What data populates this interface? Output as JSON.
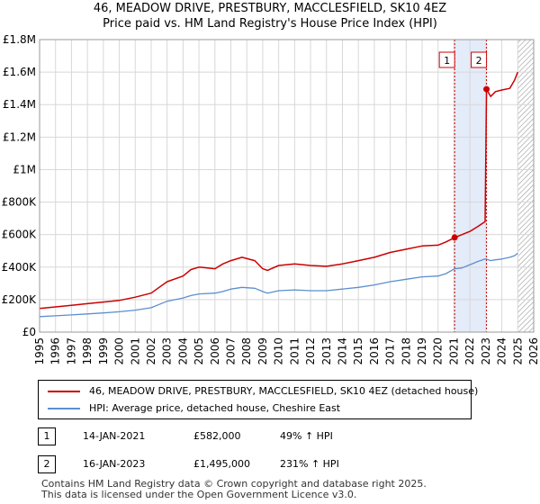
{
  "title_line1": "46, MEADOW DRIVE, PRESTBURY, MACCLESFIELD, SK10 4EZ",
  "title_line2": "Price paid vs. HM Land Registry's House Price Index (HPI)",
  "chart_data": {
    "type": "line",
    "xlim": [
      1995,
      2026
    ],
    "ylim": [
      0,
      1800000
    ],
    "y_ticks": [
      0,
      200000,
      400000,
      600000,
      800000,
      1000000,
      1200000,
      1400000,
      1600000,
      1800000
    ],
    "y_tick_labels": [
      "£0",
      "£200K",
      "£400K",
      "£600K",
      "£800K",
      "£1M",
      "£1.2M",
      "£1.4M",
      "£1.6M",
      "£1.8M"
    ],
    "x_ticks": [
      1995,
      1996,
      1997,
      1998,
      1999,
      2000,
      2001,
      2002,
      2003,
      2004,
      2005,
      2006,
      2007,
      2008,
      2009,
      2010,
      2011,
      2012,
      2013,
      2014,
      2015,
      2016,
      2017,
      2018,
      2019,
      2020,
      2021,
      2022,
      2023,
      2024,
      2025,
      2026
    ],
    "grid": true,
    "highlight_span": [
      2021.04,
      2023.04
    ],
    "forecast_start": 2025.0,
    "series": [
      {
        "name": "46, MEADOW DRIVE, PRESTBURY, MACCLESFIELD, SK10 4EZ (detached house)",
        "color": "#cc0000",
        "x": [
          1995.0,
          1996.0,
          1997.0,
          1998.0,
          1999.0,
          2000.0,
          2001.0,
          2002.0,
          2002.5,
          2003.0,
          2004.0,
          2004.5,
          2005.0,
          2006.0,
          2006.5,
          2007.0,
          2007.7,
          2008.5,
          2009.0,
          2009.3,
          2010.0,
          2011.0,
          2012.0,
          2013.0,
          2014.0,
          2015.0,
          2016.0,
          2017.0,
          2018.0,
          2019.0,
          2020.0,
          2020.5,
          2021.04,
          2021.5,
          2022.0,
          2022.5,
          2022.95,
          2023.04,
          2023.3,
          2023.6,
          2024.0,
          2024.5,
          2024.8,
          2025.0
        ],
        "y": [
          145000,
          155000,
          165000,
          175000,
          185000,
          195000,
          215000,
          240000,
          275000,
          310000,
          345000,
          385000,
          400000,
          390000,
          420000,
          440000,
          460000,
          440000,
          390000,
          380000,
          410000,
          420000,
          410000,
          405000,
          420000,
          440000,
          460000,
          490000,
          510000,
          530000,
          535000,
          555000,
          582000,
          600000,
          620000,
          650000,
          680000,
          1495000,
          1450000,
          1480000,
          1490000,
          1500000,
          1550000,
          1600000
        ]
      },
      {
        "name": "HPI: Average price, detached house, Cheshire East",
        "color": "#5b8fcf",
        "x": [
          1995.0,
          1996.0,
          1997.0,
          1998.0,
          1999.0,
          2000.0,
          2001.0,
          2002.0,
          2002.5,
          2003.0,
          2004.0,
          2004.5,
          2005.0,
          2006.0,
          2006.5,
          2007.0,
          2007.7,
          2008.5,
          2009.0,
          2009.3,
          2010.0,
          2011.0,
          2012.0,
          2013.0,
          2014.0,
          2015.0,
          2016.0,
          2017.0,
          2018.0,
          2019.0,
          2020.0,
          2020.5,
          2021.04,
          2021.5,
          2022.0,
          2022.5,
          2022.95,
          2023.04,
          2023.3,
          2023.6,
          2024.0,
          2024.5,
          2024.8,
          2025.0
        ],
        "y": [
          95000,
          100000,
          106000,
          112000,
          118000,
          125000,
          135000,
          150000,
          170000,
          190000,
          210000,
          225000,
          235000,
          240000,
          250000,
          265000,
          275000,
          270000,
          250000,
          240000,
          255000,
          260000,
          255000,
          255000,
          265000,
          275000,
          290000,
          310000,
          325000,
          340000,
          345000,
          360000,
          390000,
          395000,
          415000,
          435000,
          450000,
          450000,
          440000,
          445000,
          450000,
          460000,
          470000,
          485000
        ]
      }
    ],
    "annotations": [
      {
        "label": "1",
        "x": 2021.04,
        "y": 582000
      },
      {
        "label": "2",
        "x": 2023.04,
        "y": 1495000
      }
    ]
  },
  "legend": {
    "entries": [
      {
        "label": "46, MEADOW DRIVE, PRESTBURY, MACCLESFIELD, SK10 4EZ (detached house)",
        "color": "#cc0000"
      },
      {
        "label": "HPI: Average price, detached house, Cheshire East",
        "color": "#5b8fcf"
      }
    ]
  },
  "transactions": [
    {
      "num": "1",
      "date": "14-JAN-2021",
      "price": "£582,000",
      "hpi": "49% ↑ HPI"
    },
    {
      "num": "2",
      "date": "16-JAN-2023",
      "price": "£1,495,000",
      "hpi": "231% ↑ HPI"
    }
  ],
  "footer_line1": "Contains HM Land Registry data © Crown copyright and database right 2025.",
  "footer_line2": "This data is licensed under the Open Government Licence v3.0."
}
